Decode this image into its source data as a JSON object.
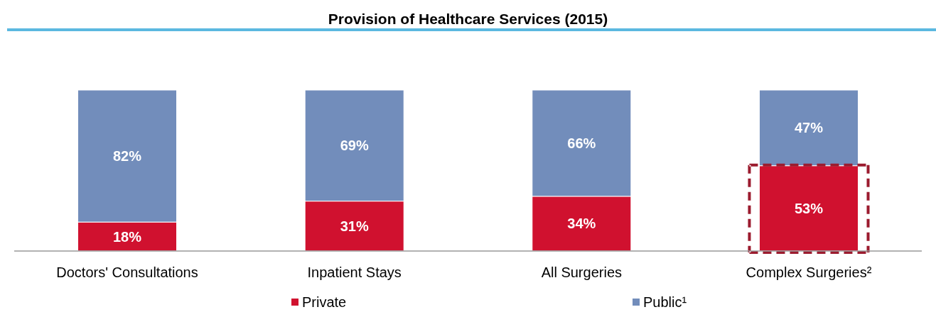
{
  "chart_data": {
    "type": "bar",
    "title": "Provision of Healthcare Services (2015)",
    "categories": [
      "Doctors' Consultations",
      "Inpatient Stays",
      "All Surgeries",
      "Complex Surgeries²"
    ],
    "stacked": true,
    "legend": "bottom",
    "series": [
      {
        "name": "Private",
        "color": "#d0112f",
        "values": [
          18,
          31,
          34,
          53
        ],
        "value_labels": [
          "18%",
          "31%",
          "34%",
          "53%"
        ]
      },
      {
        "name": "Public¹",
        "color": "#728dbb",
        "values": [
          82,
          69,
          66,
          47
        ],
        "value_labels": [
          "82%",
          "69%",
          "66%",
          "47%"
        ]
      }
    ]
  }
}
